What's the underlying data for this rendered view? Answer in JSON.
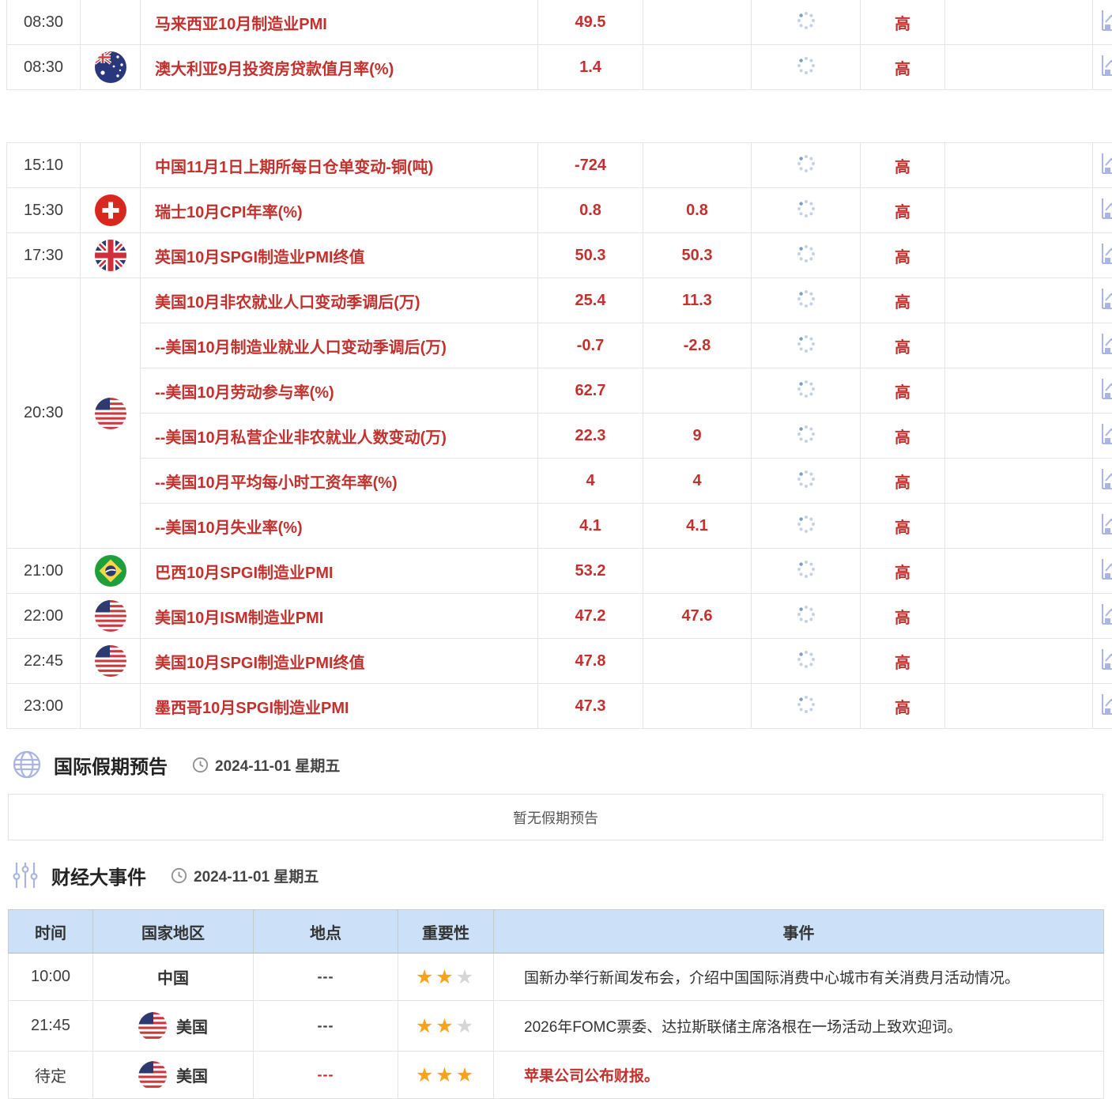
{
  "colors": {
    "accent_red": "#c2312d",
    "table_header_bg": "#cce0f8",
    "icon_periwinkle": "#a9b4e2",
    "star_orange": "#f9a31a",
    "star_gray": "#d6d6d6"
  },
  "calendar": {
    "importance_high": "高",
    "rows": [
      {
        "time": "08:30",
        "flag": "",
        "name": "马来西亚10月制造业PMI",
        "actual": "49.5",
        "forecast": ""
      },
      {
        "time": "08:30",
        "flag": "australia",
        "name": "澳大利亚9月投资房贷款值月率(%)",
        "actual": "1.4",
        "forecast": ""
      },
      {
        "time": "15:10",
        "flag": "",
        "name": "中国11月1日上期所每日仓单变动-铜(吨)",
        "actual": "-724",
        "forecast": ""
      },
      {
        "time": "15:30",
        "flag": "switzerland",
        "name": "瑞士10月CPI年率(%)",
        "actual": "0.8",
        "forecast": "0.8"
      },
      {
        "time": "17:30",
        "flag": "uk",
        "name": "英国10月SPGI制造业PMI终值",
        "actual": "50.3",
        "forecast": "50.3"
      },
      {
        "time": "20:30",
        "flag": "usa",
        "name": "美国10月非农就业人口变动季调后(万)",
        "actual": "25.4",
        "forecast": "11.3"
      },
      {
        "name": "--美国10月制造业就业人口变动季调后(万)",
        "actual": "-0.7",
        "forecast": "-2.8"
      },
      {
        "name": "--美国10月劳动参与率(%)",
        "actual": "62.7",
        "forecast": ""
      },
      {
        "name": "--美国10月私营企业非农就业人数变动(万)",
        "actual": "22.3",
        "forecast": "9"
      },
      {
        "name": "--美国10月平均每小时工资年率(%)",
        "actual": "4",
        "forecast": "4"
      },
      {
        "name": "--美国10月失业率(%)",
        "actual": "4.1",
        "forecast": "4.1"
      },
      {
        "time": "21:00",
        "flag": "brazil",
        "name": "巴西10月SPGI制造业PMI",
        "actual": "53.2",
        "forecast": ""
      },
      {
        "time": "22:00",
        "flag": "usa",
        "name": "美国10月ISM制造业PMI",
        "actual": "47.2",
        "forecast": "47.6"
      },
      {
        "time": "22:45",
        "flag": "usa",
        "name": "美国10月SPGI制造业PMI终值",
        "actual": "47.8",
        "forecast": ""
      },
      {
        "time": "23:00",
        "flag": "",
        "name": "墨西哥10月SPGI制造业PMI",
        "actual": "47.3",
        "forecast": ""
      }
    ]
  },
  "holiday_section": {
    "title": "国际假期预告",
    "date": "2024-11-01 星期五",
    "empty_text": "暂无假期预告"
  },
  "events_section": {
    "title": "财经大事件",
    "date": "2024-11-01 星期五",
    "table": {
      "headers": [
        "时间",
        "国家地区",
        "地点",
        "重要性",
        "事件"
      ],
      "rows": [
        {
          "time": "10:00",
          "country": "中国",
          "flag": "",
          "location": "---",
          "stars": 2,
          "event": "国新办举行新闻发布会，介绍中国国际消费中心城市有关消费月活动情况。",
          "highlight": false
        },
        {
          "time": "21:45",
          "country": "美国",
          "flag": "usa",
          "location": "---",
          "stars": 2,
          "event": "2026年FOMC票委、达拉斯联储主席洛根在一场活动上致欢迎词。",
          "highlight": false
        },
        {
          "time": "待定",
          "country": "美国",
          "flag": "usa",
          "location": "---",
          "stars": 3,
          "event": "苹果公司公布财报。",
          "highlight": true
        }
      ]
    }
  }
}
